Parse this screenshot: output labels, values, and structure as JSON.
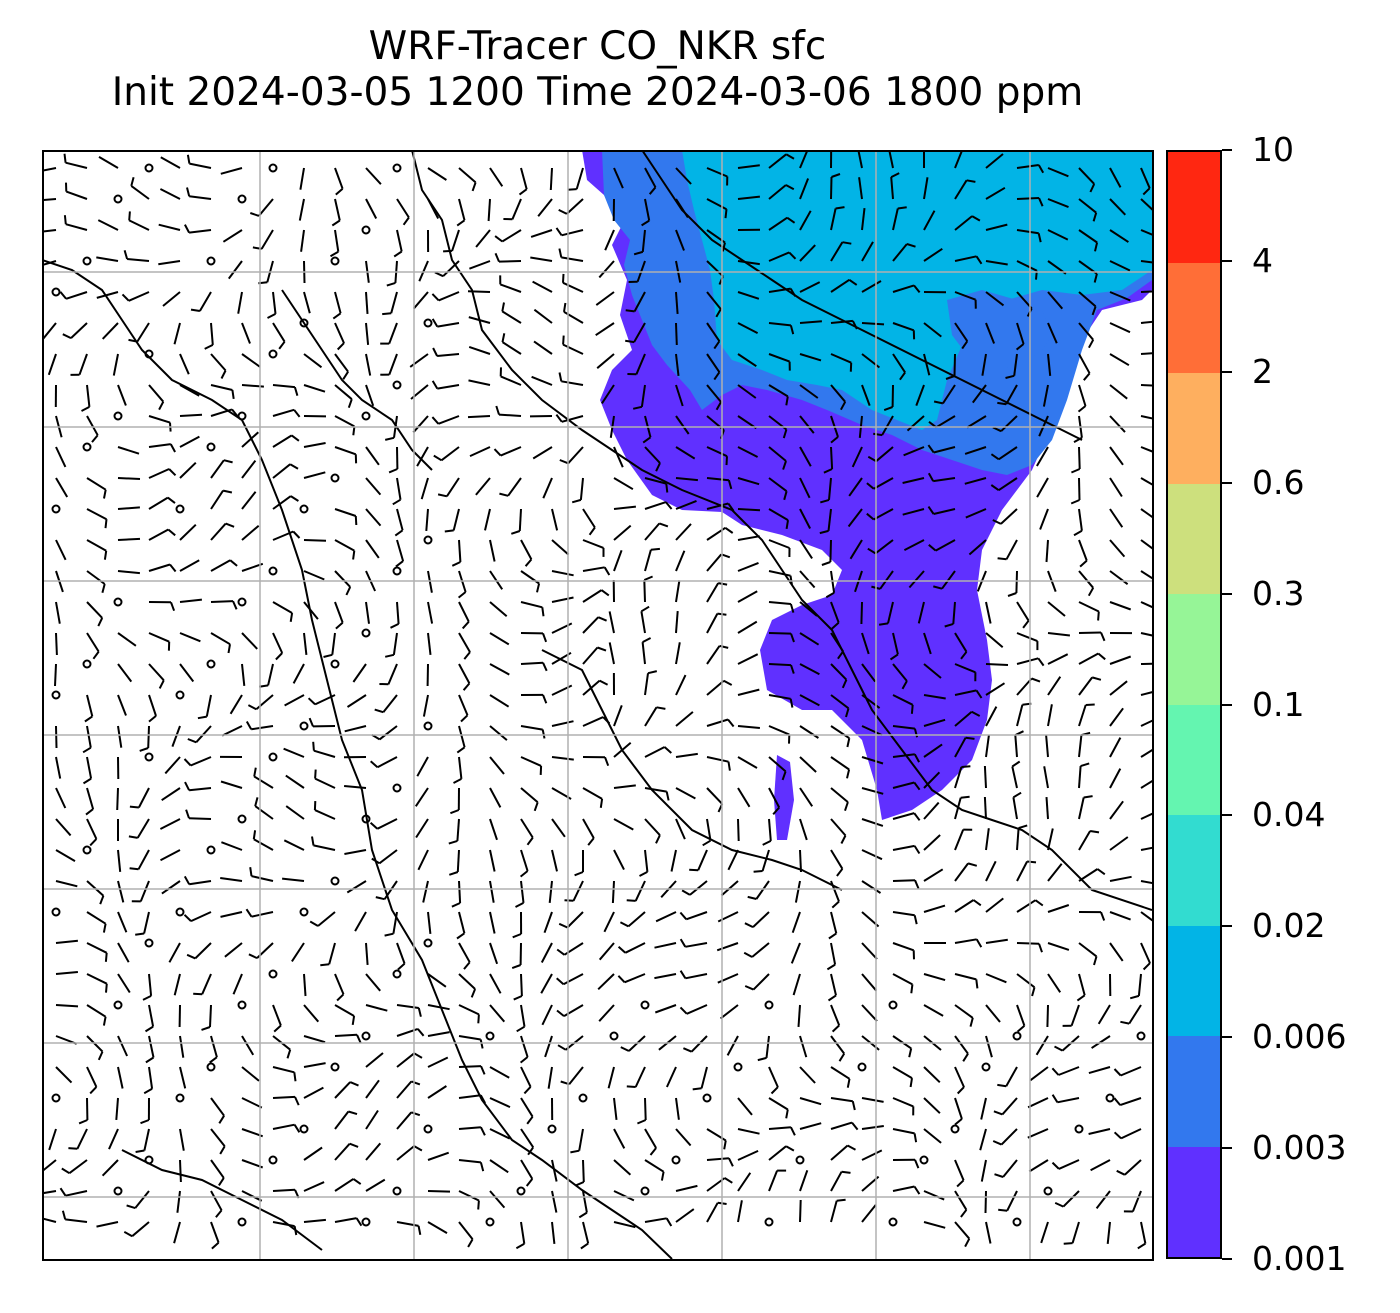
{
  "title": {
    "line1": "WRF-Tracer CO_NKR sfc",
    "line2": "Init 2024-03-05 1200 Time 2024-03-06 1800 ppm"
  },
  "map": {
    "type": "filled-contour with wind barbs",
    "gridlines": true,
    "coastlines": true
  },
  "colorbar": {
    "levels": [
      "0.001",
      "0.003",
      "0.006",
      "0.02",
      "0.04",
      "0.1",
      "0.3",
      "0.6",
      "2",
      "4",
      "10"
    ],
    "colors": [
      "#6030ff",
      "#3278ee",
      "#02b4e6",
      "#32dcd0",
      "#64f5b0",
      "#96f597",
      "#cde07d",
      "#feaf5f",
      "#ff6e37",
      "#ff2711"
    ]
  },
  "colors": {
    "tracer_lowest": "#6030ff",
    "tracer_low": "#3278ee",
    "tracer_mid": "#02b4e6",
    "grid": "#b0b0b0",
    "barbs": "#000000"
  }
}
